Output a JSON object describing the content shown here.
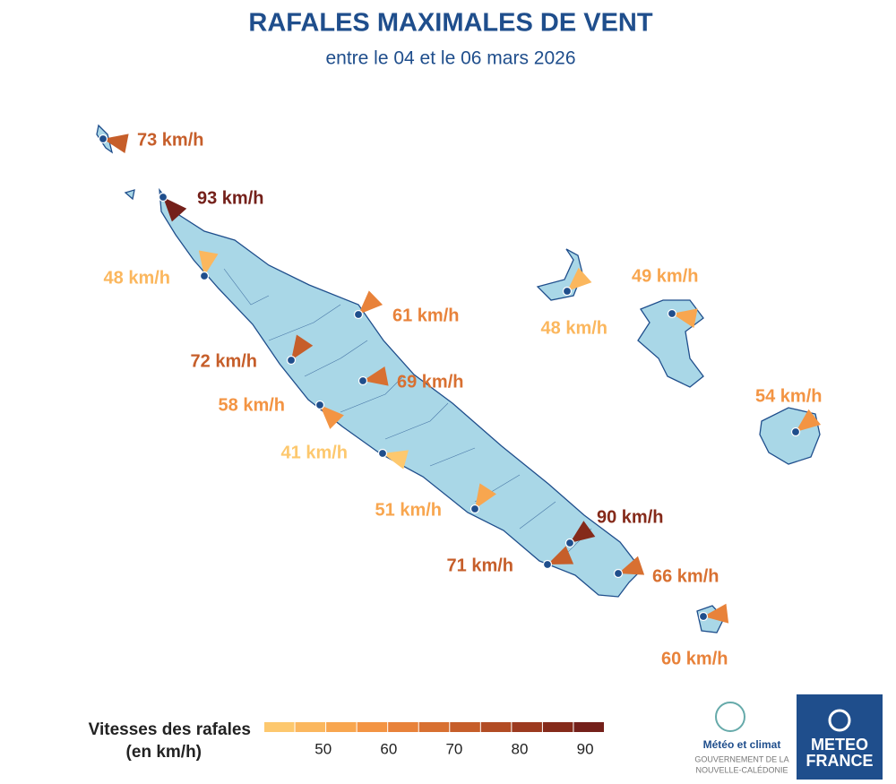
{
  "header": {
    "title": "RAFALES MAXIMALES DE VENT",
    "subtitle": "entre le 04 et le 06 mars 2026"
  },
  "stations": [
    {
      "value": 73,
      "label": "73 km/h",
      "direction": 101
    },
    {
      "value": 93,
      "label": "93 km/h",
      "direction": 138
    },
    {
      "value": 48,
      "label": "48 km/h",
      "direction": 10
    },
    {
      "value": 61,
      "label": "61 km/h",
      "direction": 46
    },
    {
      "value": 72,
      "label": "72 km/h",
      "direction": 34
    },
    {
      "value": 69,
      "label": "69 km/h",
      "direction": 79
    },
    {
      "value": 58,
      "label": "58 km/h",
      "direction": 135
    },
    {
      "value": 41,
      "label": "41 km/h",
      "direction": 105
    },
    {
      "value": 51,
      "label": "51 km/h",
      "direction": 33
    },
    {
      "value": 90,
      "label": "90 km/h",
      "direction": 54
    },
    {
      "value": 71,
      "label": "71 km/h",
      "direction": 67
    },
    {
      "value": 66,
      "label": "66 km/h",
      "direction": 71
    },
    {
      "value": 48,
      "label": "48 km/h",
      "direction": 48
    },
    {
      "value": 49,
      "label": "49 km/h",
      "direction": 101
    },
    {
      "value": 54,
      "label": "54 km/h",
      "direction": 52
    },
    {
      "value": 60,
      "label": "60 km/h",
      "direction": 83
    }
  ],
  "legend": {
    "title": "Vitesses des rafales",
    "unit": "(en km/h)",
    "range": [
      41,
      93
    ],
    "ticks": [
      50,
      60,
      70,
      80,
      90
    ],
    "colors": [
      "#fdc86e",
      "#fbb75e",
      "#f8a64f",
      "#f39443",
      "#e8823a",
      "#d87031",
      "#c65e2a",
      "#b24c24",
      "#9c3a1f",
      "#852a1a",
      "#74201a"
    ]
  },
  "logos": {
    "meteo_climat": "Météo et climat",
    "gouv_1": "GOUVERNEMENT DE LA",
    "gouv_2": "NOUVELLE-CALÉDONIE",
    "mf_1": "METEO",
    "mf_2": "FRANCE"
  }
}
